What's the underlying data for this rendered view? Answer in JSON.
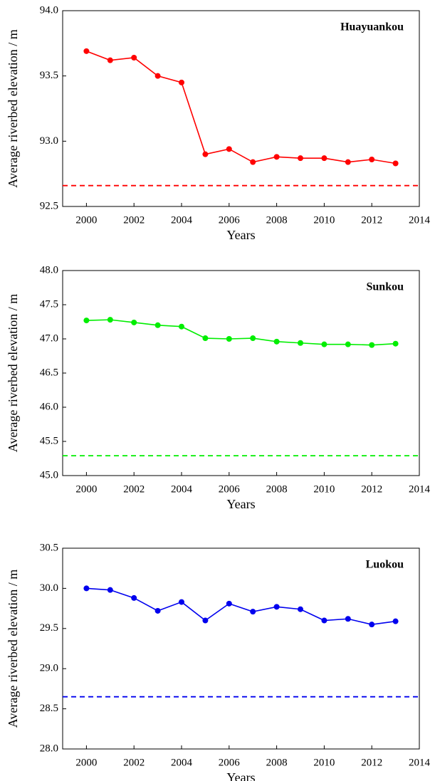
{
  "chart_data": [
    {
      "type": "line",
      "title": "Huayuankou",
      "x_label": "Years",
      "y_label": "Average riverbed elevation / m",
      "x": [
        2000,
        2001,
        2002,
        2003,
        2004,
        2005,
        2006,
        2007,
        2008,
        2009,
        2010,
        2011,
        2012,
        2013
      ],
      "values": [
        93.69,
        93.62,
        93.64,
        93.5,
        93.45,
        92.9,
        92.94,
        92.84,
        92.88,
        92.87,
        92.87,
        92.84,
        92.86,
        92.83
      ],
      "color": "#ff0000",
      "reference_line": 92.66,
      "xlim": [
        1999,
        2014
      ],
      "xticks": [
        2000,
        2002,
        2004,
        2006,
        2008,
        2010,
        2012,
        2014
      ],
      "ylim": [
        92.5,
        94.0
      ],
      "yticks": [
        92.5,
        {
          "value": 93.0,
          "label": "93.0"
        },
        93.5,
        {
          "value": 94.0,
          "label": "94.0"
        }
      ]
    },
    {
      "type": "line",
      "title": "Sunkou",
      "x_label": "Years",
      "y_label": "Average riverbed elevation / m",
      "x": [
        2000,
        2001,
        2002,
        2003,
        2004,
        2005,
        2006,
        2007,
        2008,
        2009,
        2010,
        2011,
        2012,
        2013
      ],
      "values": [
        47.27,
        47.28,
        47.24,
        47.2,
        47.18,
        47.01,
        47.0,
        47.01,
        46.96,
        46.94,
        46.92,
        46.92,
        46.91,
        46.93
      ],
      "color": "#00ee00",
      "reference_line": 45.29,
      "xlim": [
        1999,
        2014
      ],
      "xticks": [
        2000,
        2002,
        2004,
        2006,
        2008,
        2010,
        2012,
        2014
      ],
      "ylim": [
        45.0,
        48.0
      ],
      "yticks": [
        {
          "value": 45.0,
          "label": "45.0"
        },
        45.5,
        {
          "value": 46.0,
          "label": "46.0"
        },
        46.5,
        {
          "value": 47.0,
          "label": "47.0"
        },
        47.5,
        {
          "value": 48.0,
          "label": "48.0"
        }
      ]
    },
    {
      "type": "line",
      "title": "Luokou",
      "x_label": "Years",
      "y_label": "Average riverbed elevation / m",
      "x": [
        2000,
        2001,
        2002,
        2003,
        2004,
        2005,
        2006,
        2007,
        2008,
        2009,
        2010,
        2011,
        2012,
        2013
      ],
      "values": [
        30.0,
        29.98,
        29.88,
        29.72,
        29.83,
        29.6,
        29.81,
        29.71,
        29.77,
        29.74,
        29.6,
        29.62,
        29.55,
        29.59
      ],
      "color": "#0000ee",
      "reference_line": 28.65,
      "xlim": [
        1999,
        2014
      ],
      "xticks": [
        2000,
        2002,
        2004,
        2006,
        2008,
        2010,
        2012,
        2014
      ],
      "ylim": [
        28.0,
        30.5
      ],
      "yticks": [
        {
          "value": 28.0,
          "label": "28.0"
        },
        28.5,
        {
          "value": 29.0,
          "label": "29.0"
        },
        29.5,
        {
          "value": 30.0,
          "label": "30.0"
        },
        30.5
      ]
    }
  ]
}
